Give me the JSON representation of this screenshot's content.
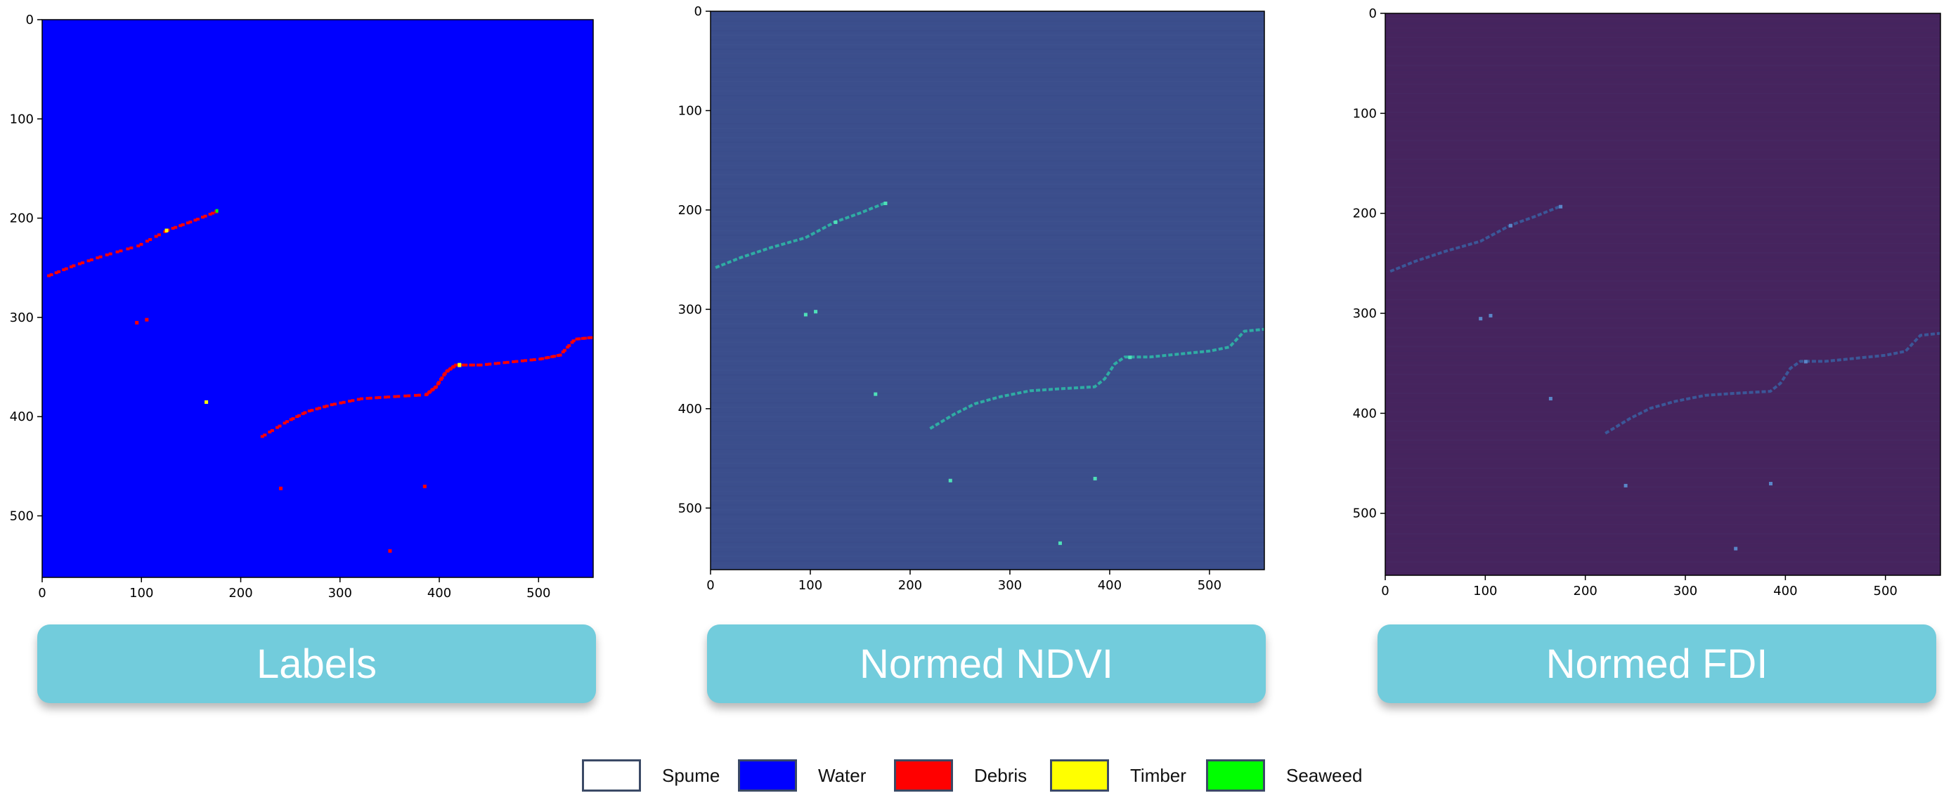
{
  "panels": [
    {
      "id": "labels",
      "caption": "Labels"
    },
    {
      "id": "ndvi",
      "caption": "Normed NDVI"
    },
    {
      "id": "fdi",
      "caption": "Normed FDI"
    }
  ],
  "axes": {
    "x_ticks": [
      "0",
      "100",
      "200",
      "300",
      "400",
      "500"
    ],
    "y_ticks": [
      "0",
      "100",
      "200",
      "300",
      "400",
      "500"
    ],
    "x_range": [
      0,
      555
    ],
    "y_range": [
      0,
      562
    ]
  },
  "legend": [
    {
      "label": "Spume",
      "color": "#ffffff"
    },
    {
      "label": "Water",
      "color": "#0000ff"
    },
    {
      "label": "Debris",
      "color": "#ff0000"
    },
    {
      "label": "Timber",
      "color": "#ffff00"
    },
    {
      "label": "Seaweed",
      "color": "#00ff00"
    }
  ],
  "colors": {
    "water": "#0000ff",
    "ndvi_background": "#3b4e8c",
    "ndvi_feature": "#2fb7a6",
    "fdi_background": "#46245e",
    "fdi_feature": "#3a5d9e",
    "caption_background": "#72ccdc"
  },
  "chart_data": [
    {
      "type": "heatmap",
      "title": "Labels",
      "xlim": [
        0,
        555
      ],
      "ylim": [
        562,
        0
      ],
      "grid": false
    },
    {
      "type": "heatmap",
      "title": "Normed NDVI",
      "xlim": [
        0,
        555
      ],
      "ylim": [
        562,
        0
      ],
      "grid": false
    },
    {
      "type": "heatmap",
      "title": "Normed FDI",
      "xlim": [
        0,
        555
      ],
      "ylim": [
        562,
        0
      ],
      "grid": false
    }
  ]
}
